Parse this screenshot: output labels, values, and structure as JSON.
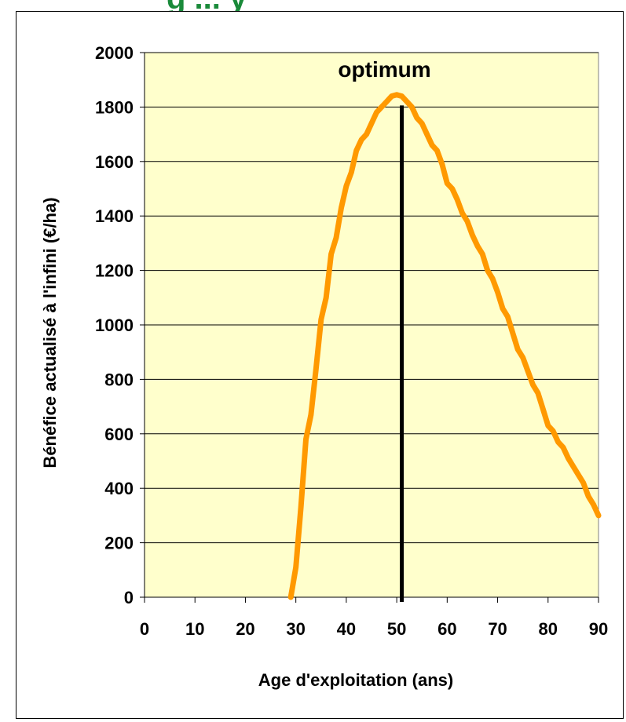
{
  "header_fragment": {
    "text": "g ... y",
    "color": "#1a8a3a"
  },
  "chart_data": {
    "type": "line",
    "title": "",
    "xlabel": "Age d'exploitation (ans)",
    "ylabel": "Bénéfice actualisé à l'infini (€/ha)",
    "xlim": [
      0,
      90
    ],
    "ylim": [
      0,
      2000
    ],
    "xticks": [
      0,
      10,
      20,
      30,
      40,
      50,
      60,
      70,
      80,
      90
    ],
    "yticks": [
      0,
      200,
      400,
      600,
      800,
      1000,
      1200,
      1400,
      1600,
      1800,
      2000
    ],
    "grid": "horizontal",
    "plot_background": "#ffffcc",
    "series": [
      {
        "color": "#ff9900",
        "x": [
          29,
          30,
          31,
          32,
          33,
          34,
          35,
          36,
          37,
          38,
          39,
          40,
          41,
          42,
          43,
          44,
          45,
          46,
          47,
          48,
          49,
          50,
          51,
          52,
          53,
          54,
          55,
          56,
          57,
          58,
          59,
          60,
          61,
          62,
          63,
          64,
          65,
          66,
          67,
          68,
          69,
          70,
          71,
          72,
          73,
          74,
          75,
          76,
          77,
          78,
          79,
          80,
          81,
          82,
          83,
          84,
          85,
          86,
          87,
          88,
          89,
          90
        ],
        "y": [
          0,
          110,
          330,
          580,
          670,
          840,
          1020,
          1100,
          1260,
          1320,
          1430,
          1510,
          1560,
          1640,
          1680,
          1700,
          1740,
          1780,
          1800,
          1820,
          1840,
          1845,
          1840,
          1820,
          1800,
          1760,
          1740,
          1700,
          1660,
          1640,
          1590,
          1520,
          1500,
          1460,
          1410,
          1380,
          1330,
          1290,
          1260,
          1200,
          1170,
          1120,
          1060,
          1030,
          970,
          910,
          880,
          830,
          780,
          750,
          690,
          630,
          610,
          570,
          550,
          510,
          480,
          450,
          420,
          370,
          340,
          300
        ]
      }
    ],
    "vline": {
      "x": 51,
      "label": "optimum",
      "color": "#000000"
    }
  }
}
